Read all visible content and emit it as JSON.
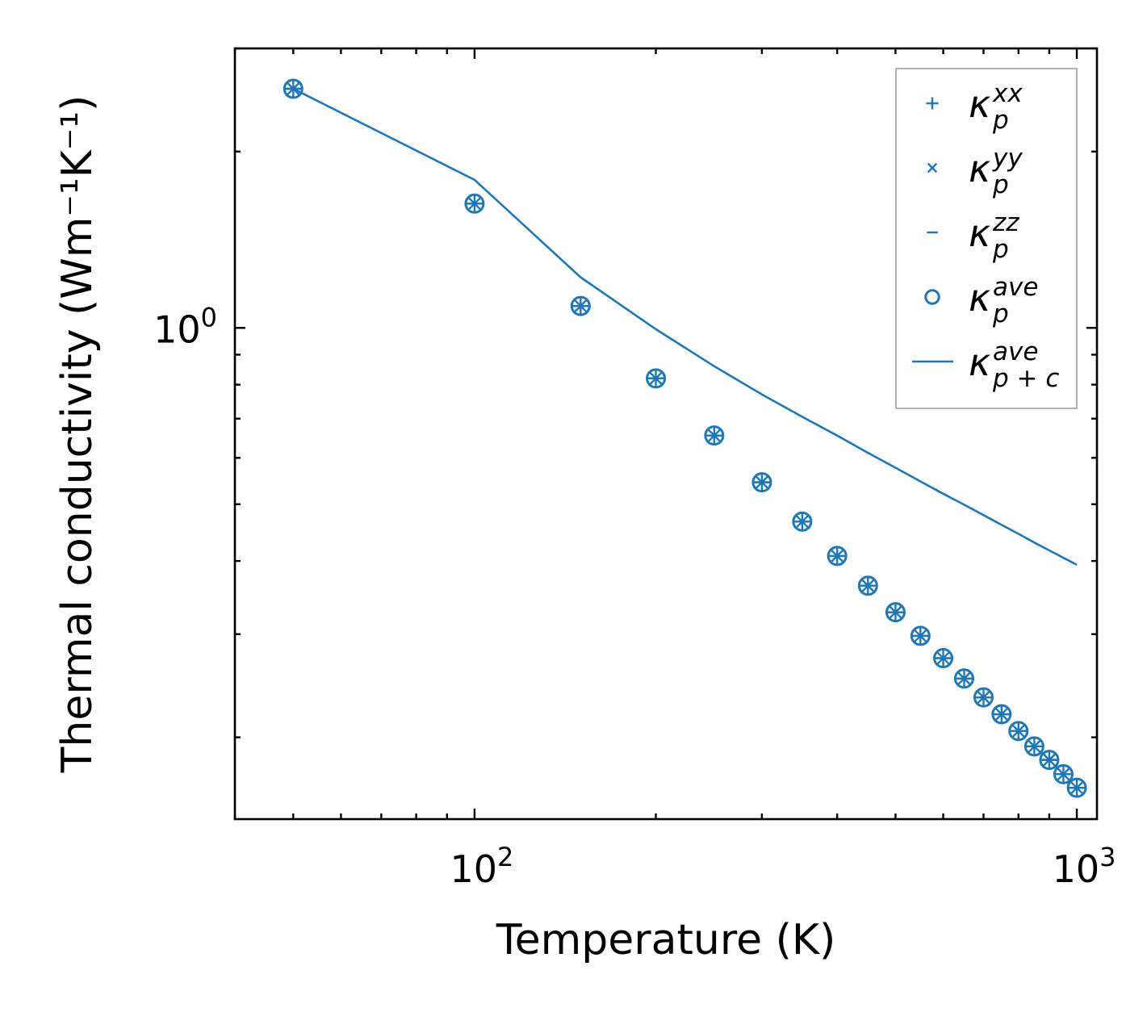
{
  "chart_data": {
    "type": "scatter",
    "xscale": "log",
    "yscale": "log",
    "xlim": [
      40,
      1080
    ],
    "ylim": [
      0.145,
      3.0
    ],
    "xlabel": "Temperature (K)",
    "ylabel": "Thermal conductivity (Wm⁻¹K⁻¹)",
    "xticks": [
      {
        "value": 100,
        "base": "10",
        "exp": "2"
      },
      {
        "value": 1000,
        "base": "10",
        "exp": "3"
      }
    ],
    "yticks": [
      {
        "value": 1,
        "base": "10",
        "exp": "0"
      }
    ],
    "color": "#1f77b4",
    "x": [
      50,
      100,
      150,
      200,
      250,
      300,
      350,
      400,
      450,
      500,
      550,
      600,
      650,
      700,
      750,
      800,
      850,
      900,
      950,
      1000
    ],
    "series": [
      {
        "name": "kappa_p_xx",
        "marker": "+",
        "values": [
          2.56,
          1.63,
          1.09,
          0.82,
          0.655,
          0.545,
          0.467,
          0.408,
          0.363,
          0.327,
          0.298,
          0.273,
          0.252,
          0.234,
          0.219,
          0.205,
          0.193,
          0.183,
          0.173,
          0.164
        ]
      },
      {
        "name": "kappa_p_yy",
        "marker": "x",
        "values": [
          2.56,
          1.63,
          1.09,
          0.82,
          0.655,
          0.545,
          0.467,
          0.408,
          0.363,
          0.327,
          0.298,
          0.273,
          0.252,
          0.234,
          0.219,
          0.205,
          0.193,
          0.183,
          0.173,
          0.164
        ]
      },
      {
        "name": "kappa_p_zz",
        "marker": "_",
        "values": [
          2.56,
          1.63,
          1.09,
          0.82,
          0.655,
          0.545,
          0.467,
          0.408,
          0.363,
          0.327,
          0.298,
          0.273,
          0.252,
          0.234,
          0.219,
          0.205,
          0.193,
          0.183,
          0.173,
          0.164
        ]
      },
      {
        "name": "kappa_p_ave",
        "marker": "o",
        "values": [
          2.56,
          1.63,
          1.09,
          0.82,
          0.655,
          0.545,
          0.467,
          0.408,
          0.363,
          0.327,
          0.298,
          0.273,
          0.252,
          0.234,
          0.219,
          0.205,
          0.193,
          0.183,
          0.173,
          0.164
        ]
      },
      {
        "name": "kappa_p+c_ave",
        "marker": "line",
        "values": [
          2.56,
          1.79,
          1.22,
          0.995,
          0.86,
          0.77,
          0.705,
          0.655,
          0.612,
          0.577,
          0.547,
          0.521,
          0.499,
          0.479,
          0.461,
          0.445,
          0.43,
          0.417,
          0.405,
          0.394
        ]
      }
    ],
    "legend": {
      "position": "upper right",
      "entries": [
        {
          "symbol": "κ",
          "sub": "p",
          "sup": "xx",
          "marker": "+"
        },
        {
          "symbol": "κ",
          "sub": "p",
          "sup": "yy",
          "marker": "x"
        },
        {
          "symbol": "κ",
          "sub": "p",
          "sup": "zz",
          "marker": "_"
        },
        {
          "symbol": "κ",
          "sub": "p",
          "sup": "ave",
          "marker": "o"
        },
        {
          "symbol": "κ",
          "sub": "p + c",
          "sup": "ave",
          "marker": "line"
        }
      ]
    }
  }
}
